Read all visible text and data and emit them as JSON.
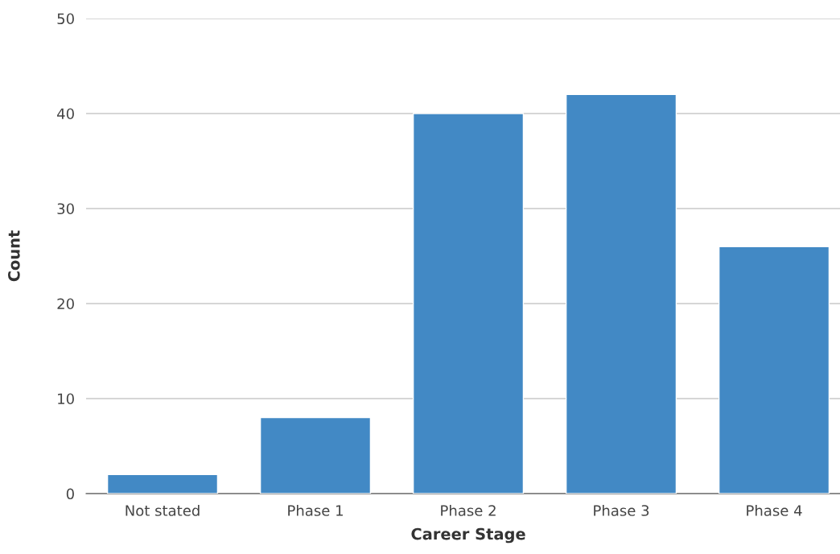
{
  "chart_data": {
    "type": "bar",
    "xlabel": "Career Stage",
    "ylabel": "Count",
    "categories": [
      "Not stated",
      "Phase 1",
      "Phase 2",
      "Phase 3",
      "Phase 4"
    ],
    "values": [
      2,
      8,
      40,
      42,
      26
    ],
    "color": "#4289c5",
    "ylim": [
      0,
      50
    ],
    "yticks": [
      0,
      10,
      20,
      30,
      40,
      50
    ],
    "grid": "y",
    "legend": false
  }
}
